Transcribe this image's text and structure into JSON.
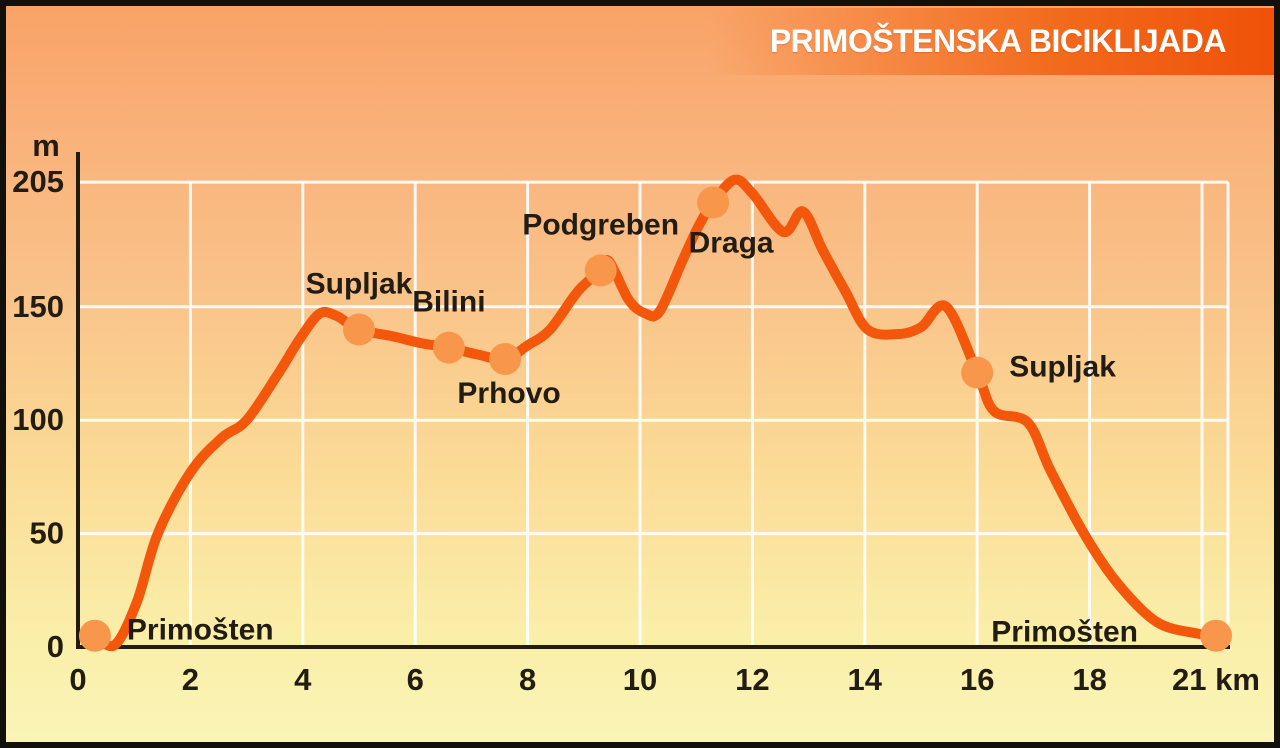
{
  "title": "PRIMOŠTENSKA BICIKLIJADA",
  "chart_data": {
    "type": "line",
    "title": "PRIMOŠTENSKA BICIKLIJADA",
    "xlabel": "km",
    "ylabel": "m",
    "xlim": [
      0,
      21
    ],
    "ylim": [
      0,
      205
    ],
    "grid": true,
    "x_gridlines_km": [
      2,
      4,
      6,
      8,
      10,
      12,
      14,
      16,
      18,
      20
    ],
    "x_tick_labels": [
      {
        "km": 0,
        "label": "0"
      },
      {
        "km": 2,
        "label": "2"
      },
      {
        "km": 4,
        "label": "4"
      },
      {
        "km": 6,
        "label": "6"
      },
      {
        "km": 8,
        "label": "8"
      },
      {
        "km": 10,
        "label": "10"
      },
      {
        "km": 12,
        "label": "12"
      },
      {
        "km": 14,
        "label": "14"
      },
      {
        "km": 16,
        "label": "16"
      },
      {
        "km": 18,
        "label": "18"
      },
      {
        "km": 21,
        "label": "21 km"
      }
    ],
    "y_tick_labels": [
      {
        "m": 0,
        "label": "0"
      },
      {
        "m": 50,
        "label": "50"
      },
      {
        "m": 100,
        "label": "100"
      },
      {
        "m": 150,
        "label": "150"
      },
      {
        "m": 205,
        "label": "205"
      }
    ],
    "stations": [
      {
        "name": "Primošten",
        "km": 0.3,
        "elevation_m": 5,
        "label_position": "right"
      },
      {
        "name": "Supljak",
        "km": 5.0,
        "elevation_m": 140,
        "label_position": "above"
      },
      {
        "name": "Bilini",
        "km": 6.6,
        "elevation_m": 132,
        "label_position": "above"
      },
      {
        "name": "Prhovo",
        "km": 7.6,
        "elevation_m": 127,
        "label_position": "below"
      },
      {
        "name": "Podgreben",
        "km": 9.3,
        "elevation_m": 166,
        "label_position": "above"
      },
      {
        "name": "Draga",
        "km": 11.3,
        "elevation_m": 196,
        "label_position": "below-right"
      },
      {
        "name": "Supljak",
        "km": 16.0,
        "elevation_m": 121,
        "label_position": "right"
      },
      {
        "name": "Primošten",
        "km": 21.0,
        "elevation_m": 5,
        "label_position": "left"
      }
    ],
    "profile_points": [
      [
        0.3,
        5
      ],
      [
        0.66,
        1
      ],
      [
        1.05,
        20
      ],
      [
        1.42,
        50
      ],
      [
        2.0,
        77
      ],
      [
        2.55,
        92
      ],
      [
        3.0,
        100
      ],
      [
        3.55,
        120
      ],
      [
        3.95,
        136
      ],
      [
        4.3,
        147
      ],
      [
        4.6,
        146
      ],
      [
        5.0,
        140
      ],
      [
        5.6,
        137
      ],
      [
        6.1,
        134
      ],
      [
        6.6,
        132
      ],
      [
        7.1,
        129
      ],
      [
        7.6,
        127
      ],
      [
        8.0,
        133
      ],
      [
        8.4,
        140
      ],
      [
        8.9,
        157
      ],
      [
        9.3,
        166
      ],
      [
        9.45,
        170
      ],
      [
        9.8,
        153
      ],
      [
        10.1,
        147
      ],
      [
        10.35,
        148
      ],
      [
        10.75,
        170
      ],
      [
        11.05,
        186
      ],
      [
        11.3,
        196
      ],
      [
        11.68,
        206
      ],
      [
        12.0,
        200
      ],
      [
        12.55,
        183
      ],
      [
        12.9,
        192
      ],
      [
        13.25,
        175
      ],
      [
        13.65,
        157
      ],
      [
        14.05,
        140
      ],
      [
        14.6,
        138
      ],
      [
        15.0,
        141
      ],
      [
        15.45,
        150
      ],
      [
        16.0,
        121
      ],
      [
        16.3,
        104
      ],
      [
        16.9,
        99
      ],
      [
        17.3,
        78
      ],
      [
        17.9,
        50
      ],
      [
        18.5,
        28
      ],
      [
        19.2,
        11
      ],
      [
        19.9,
        6
      ],
      [
        21.0,
        5
      ]
    ],
    "colors": {
      "line": "#F2570B",
      "marker": "#F8974C",
      "grid": "#FFFFFF",
      "axis": "#221B10",
      "text": "#231C12",
      "title_text": "#FFFFFF",
      "banner_right": "#EF5208",
      "bg_top": "#F9A267",
      "bg_bottom": "#FAF4B6"
    }
  }
}
